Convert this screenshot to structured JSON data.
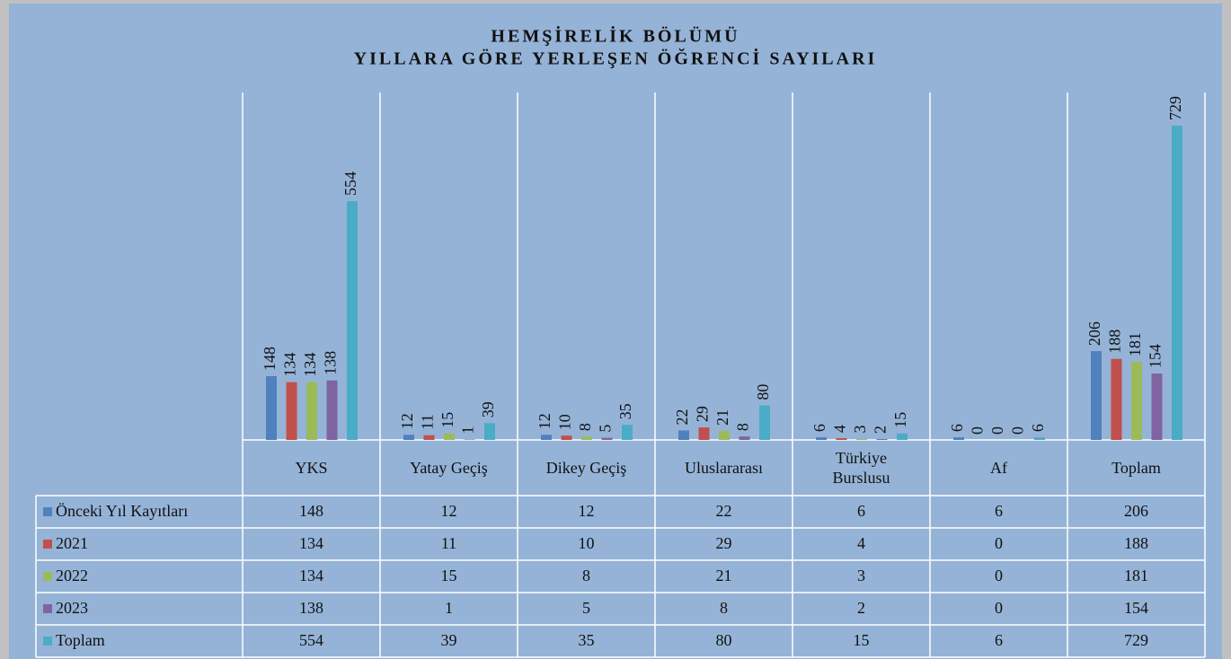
{
  "chart_data": {
    "type": "bar",
    "title": [
      "HEMŞİRELİK BÖLÜMÜ",
      "YILLARA GÖRE YERLEŞEN ÖĞRENCİ SAYILARI"
    ],
    "categories": [
      "YKS",
      "Yatay Geçiş",
      "Dikey Geçiş",
      "Uluslararası",
      "Türkiye Burslusu",
      "Af",
      "Toplam"
    ],
    "series": [
      {
        "name": "Önceki Yıl Kayıtları",
        "color": "#4f81bd",
        "values": [
          148,
          12,
          12,
          22,
          6,
          6,
          206
        ]
      },
      {
        "name": "2021",
        "color": "#c0504d",
        "values": [
          134,
          11,
          10,
          29,
          4,
          0,
          188
        ]
      },
      {
        "name": "2022",
        "color": "#9bbb59",
        "values": [
          134,
          15,
          8,
          21,
          3,
          0,
          181
        ]
      },
      {
        "name": "2023",
        "color": "#8064a2",
        "values": [
          138,
          1,
          5,
          8,
          2,
          0,
          154
        ]
      },
      {
        "name": "Toplam",
        "color": "#4bacc6",
        "values": [
          554,
          39,
          35,
          80,
          15,
          6,
          729
        ]
      }
    ]
  }
}
